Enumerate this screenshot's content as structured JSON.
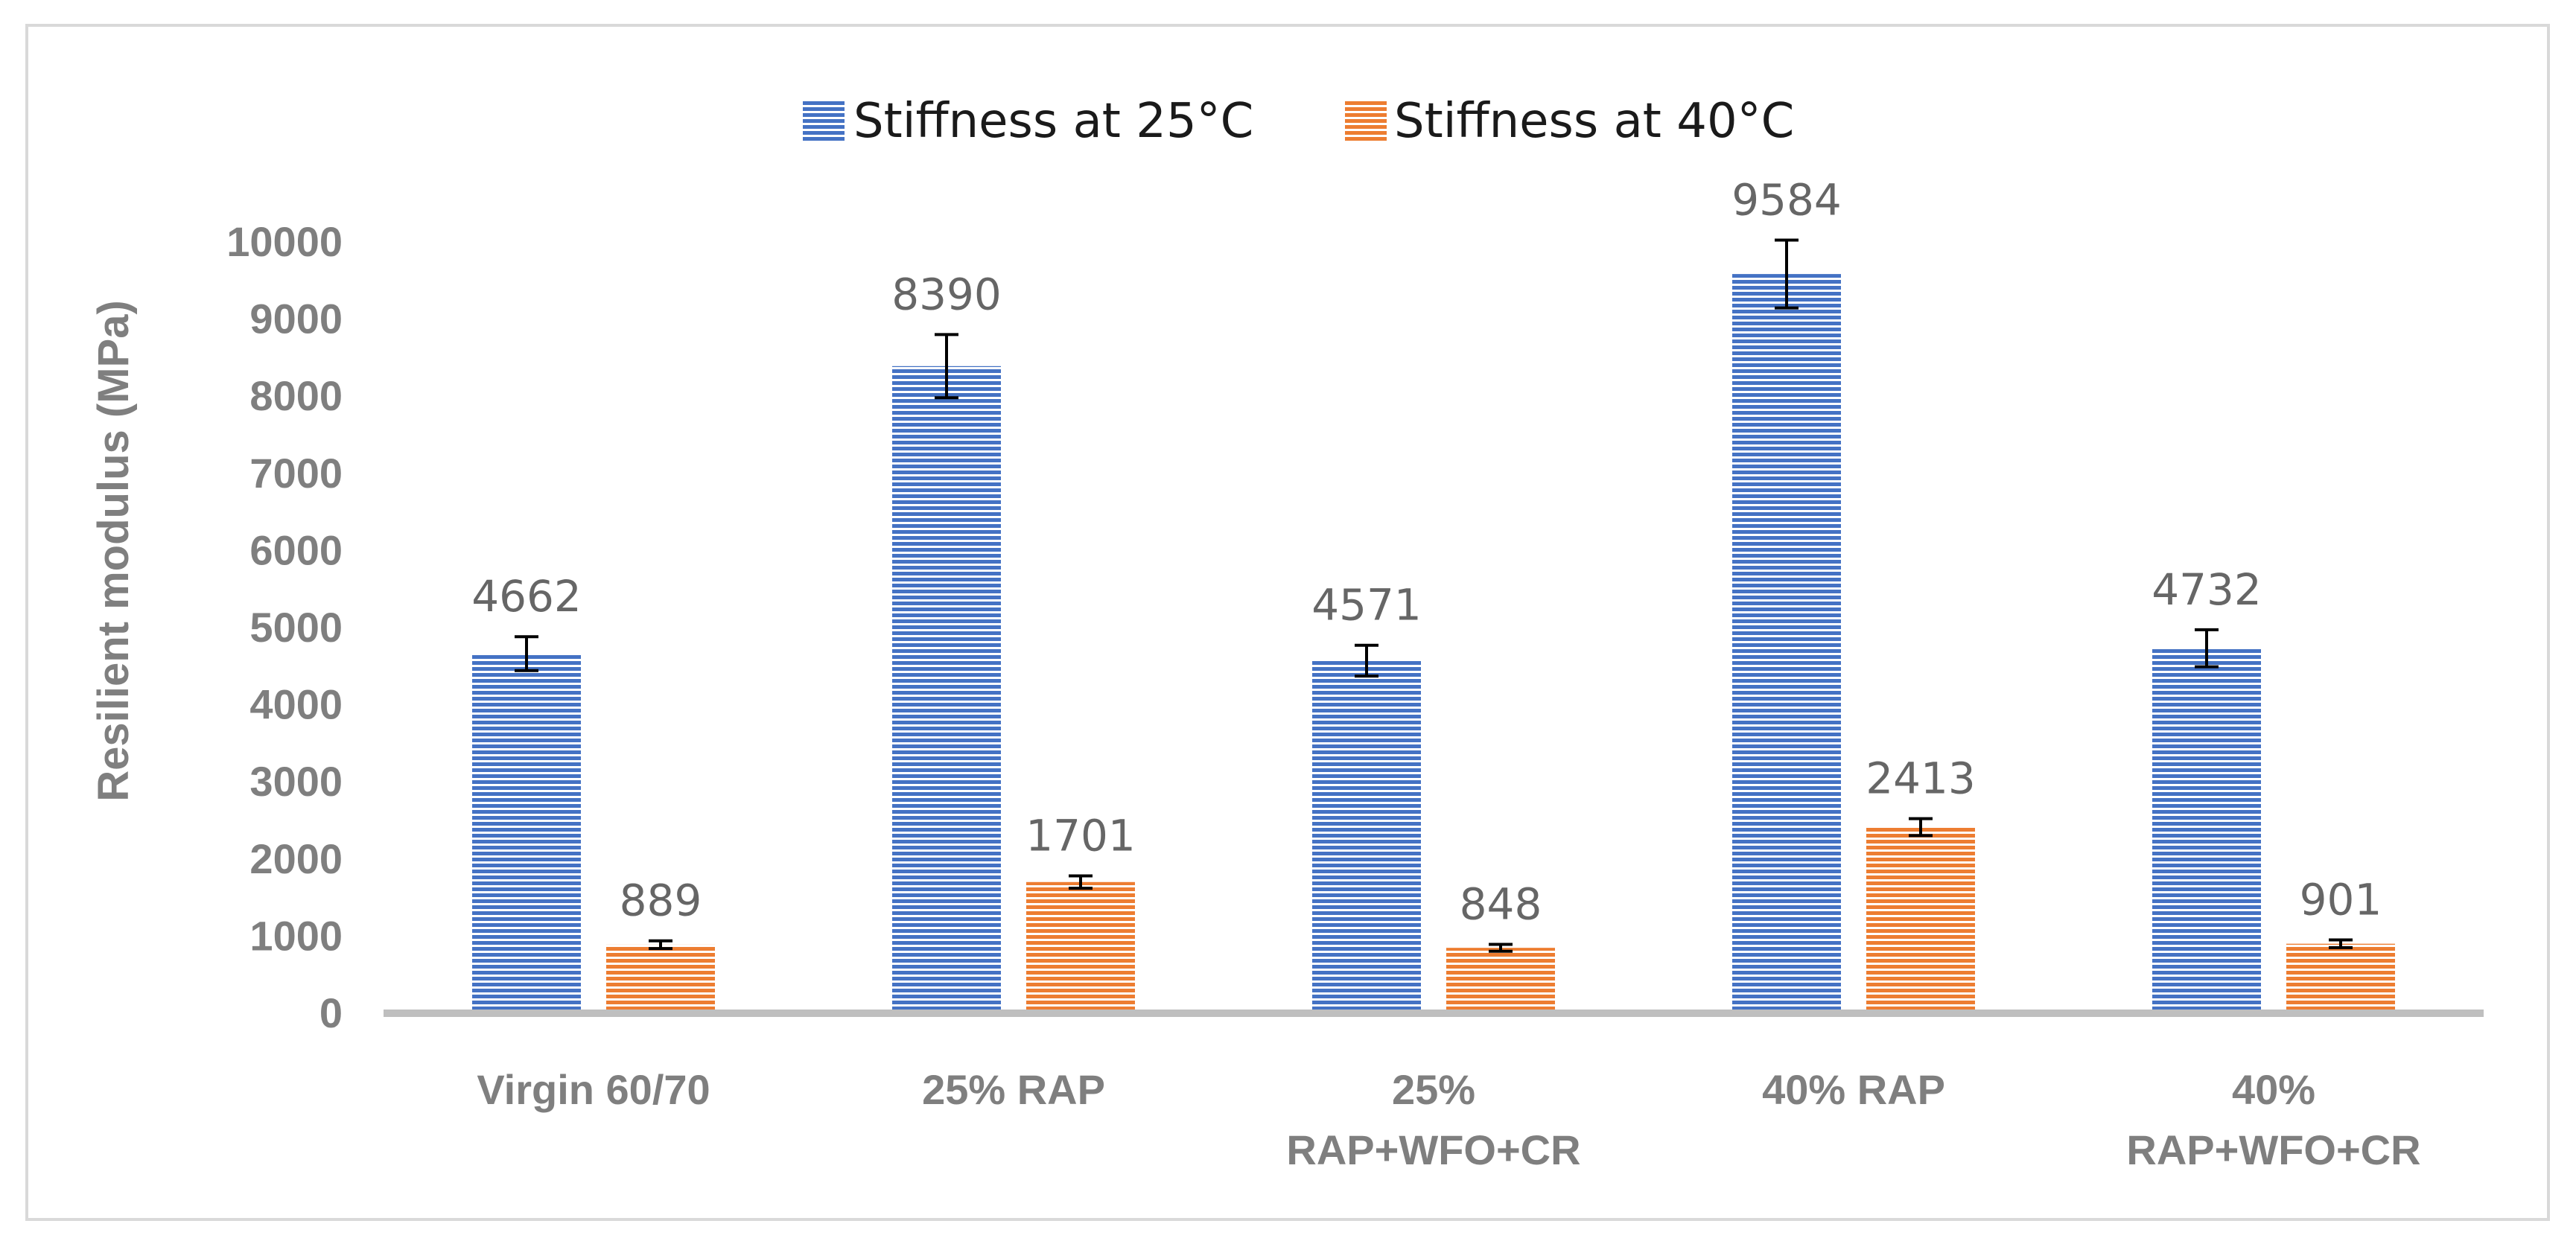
{
  "chart_data": {
    "type": "bar",
    "title": "",
    "xlabel": "",
    "ylabel": "Resilient modulus (MPa)",
    "ylim": [
      0,
      10000
    ],
    "yticks": [
      0,
      1000,
      2000,
      3000,
      4000,
      5000,
      6000,
      7000,
      8000,
      9000,
      10000
    ],
    "categories": [
      [
        "Virgin 60/70"
      ],
      [
        "25% RAP"
      ],
      [
        "25%",
        "RAP+WFO+CR"
      ],
      [
        "40% RAP"
      ],
      [
        "40%",
        "RAP+WFO+CR"
      ]
    ],
    "series": [
      {
        "name": "Stiffness at 25°C",
        "color": "#4472c4",
        "values": [
          4662,
          8390,
          4571,
          9584,
          4732
        ],
        "errors": [
          220,
          410,
          200,
          440,
          240
        ]
      },
      {
        "name": "Stiffness at 40°C",
        "color": "#ed7d31",
        "values": [
          889,
          1701,
          848,
          2413,
          901
        ],
        "errors": [
          50,
          80,
          45,
          110,
          50
        ]
      }
    ],
    "legend_position": "top-center",
    "data_labels": true,
    "grid": false
  }
}
